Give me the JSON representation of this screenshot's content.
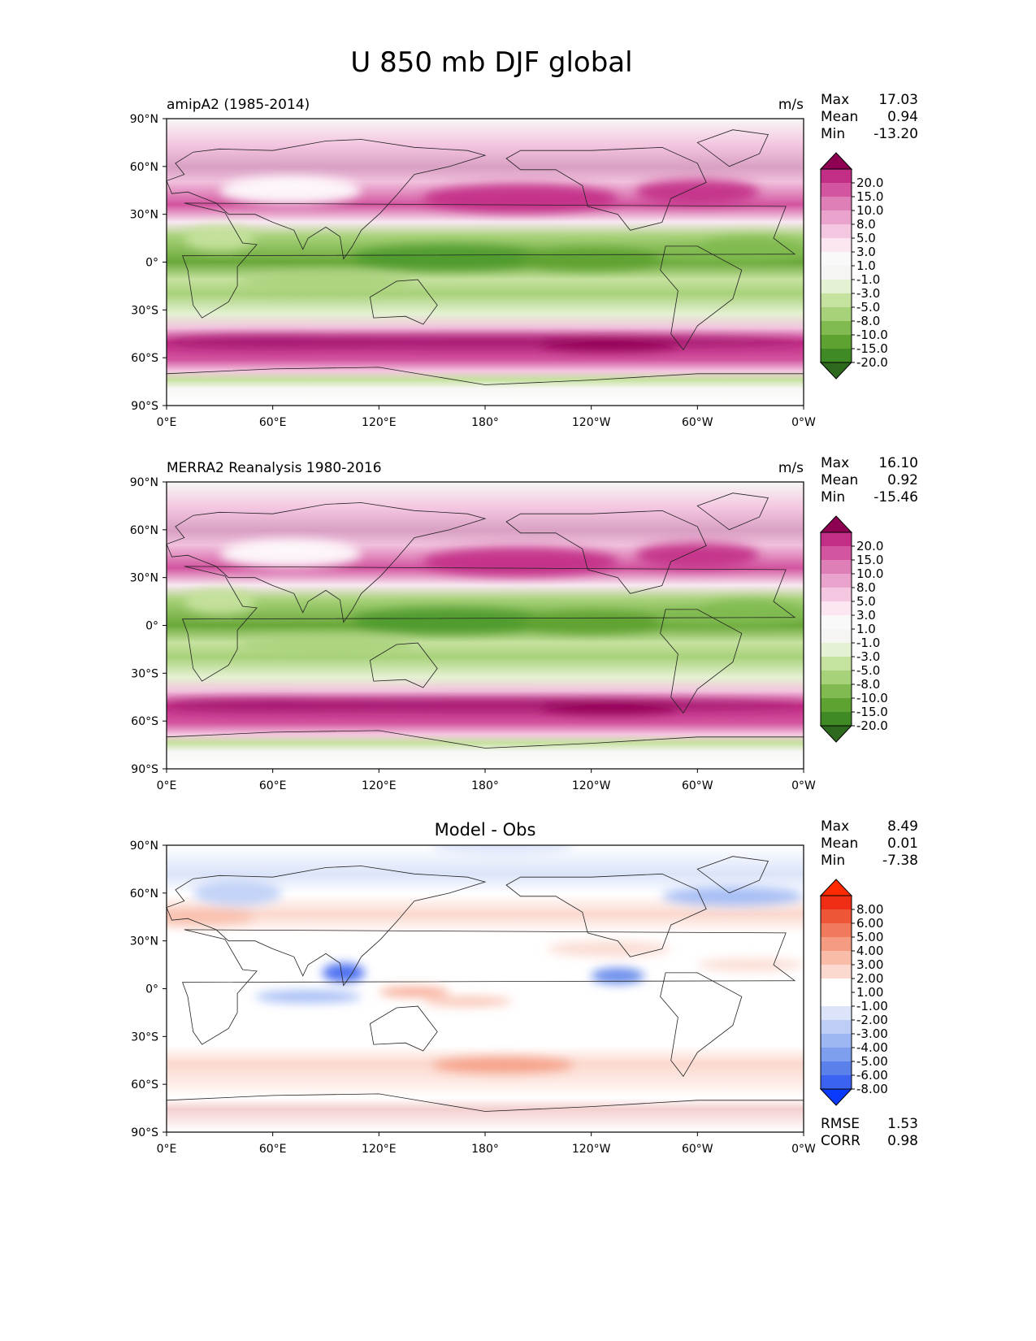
{
  "figure": {
    "title": "U 850 mb DJF global"
  },
  "axes": {
    "lon_ticks": [
      "0°E",
      "60°E",
      "120°E",
      "180°",
      "120°W",
      "60°W",
      "0°W"
    ],
    "lat_ticks": [
      "90°N",
      "60°N",
      "30°N",
      "0°",
      "30°S",
      "60°S",
      "90°S"
    ]
  },
  "colors": {
    "field": [
      "#2d6a1d",
      "#3f8a24",
      "#5ea232",
      "#80ba50",
      "#a8d27a",
      "#c6e29f",
      "#e4f1d2",
      "#f5f6f3",
      "#f9f9f9",
      "#fbe6f1",
      "#f4c6e0",
      "#eaa3cd",
      "#df7fb8",
      "#d3549f",
      "#c22e86",
      "#8e0152"
    ],
    "diff": [
      "#0b3aff",
      "#3b62f0",
      "#5a81ea",
      "#7e9ff0",
      "#9db7f4",
      "#bdcdf6",
      "#dbe4f9",
      "#ffffff",
      "#ffffff",
      "#fbd9cf",
      "#f8bca9",
      "#f59b82",
      "#f27a5c",
      "#ef5638",
      "#f02e15",
      "#ff2a00"
    ]
  },
  "chart_data": [
    {
      "type": "heatmap",
      "title": "amipA2 (1985-2014)",
      "units": "m/s",
      "stats": {
        "max_label": "Max",
        "max": "17.03",
        "mean_label": "Mean",
        "mean": "0.94",
        "min_label": "Min",
        "min": "-13.20"
      },
      "colorbar_levels": [
        "20.0",
        "15.0",
        "10.0",
        "8.0",
        "5.0",
        "3.0",
        "1.0",
        "-1.0",
        "-3.0",
        "-5.0",
        "-8.0",
        "-10.0",
        "-15.0",
        "-20.0"
      ],
      "xlim": [
        0,
        360
      ],
      "ylim": [
        -90,
        90
      ],
      "palette": "field"
    },
    {
      "type": "heatmap",
      "title": "MERRA2 Reanalysis 1980-2016",
      "units": "m/s",
      "stats": {
        "max_label": "Max",
        "max": "16.10",
        "mean_label": "Mean",
        "mean": "0.92",
        "min_label": "Min",
        "min": "-15.46"
      },
      "colorbar_levels": [
        "20.0",
        "15.0",
        "10.0",
        "8.0",
        "5.0",
        "3.0",
        "1.0",
        "-1.0",
        "-3.0",
        "-5.0",
        "-8.0",
        "-10.0",
        "-15.0",
        "-20.0"
      ],
      "xlim": [
        0,
        360
      ],
      "ylim": [
        -90,
        90
      ],
      "palette": "field"
    },
    {
      "type": "heatmap",
      "title": "Model - Obs",
      "units": "",
      "stats": {
        "max_label": "Max",
        "max": "8.49",
        "mean_label": "Mean",
        "mean": "0.01",
        "min_label": "Min",
        "min": "-7.38"
      },
      "extra_stats": {
        "rmse_label": "RMSE",
        "rmse": "1.53",
        "corr_label": "CORR",
        "corr": "0.98"
      },
      "colorbar_levels": [
        "8.00",
        "6.00",
        "5.00",
        "4.00",
        "3.00",
        "2.00",
        "1.00",
        "-1.00",
        "-2.00",
        "-3.00",
        "-4.00",
        "-5.00",
        "-6.00",
        "-8.00"
      ],
      "xlim": [
        0,
        360
      ],
      "ylim": [
        -90,
        90
      ],
      "palette": "diff"
    }
  ]
}
